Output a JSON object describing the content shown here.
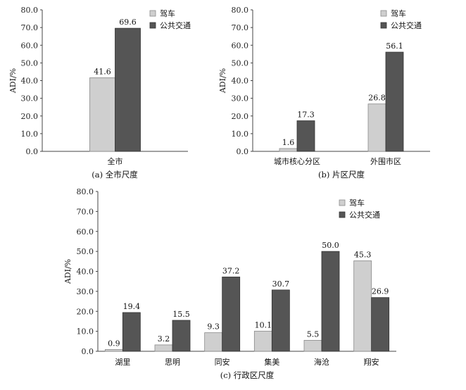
{
  "colors": {
    "drive": "#cfcfcf",
    "transit": "#555555",
    "drive_stroke": "#8a8a8a",
    "transit_stroke": "#333333"
  },
  "chart_data": [
    {
      "type": "bar",
      "caption": "(a) 全市尺度",
      "ylabel": "ADI/%",
      "ylim": [
        0,
        80
      ],
      "yticks": [
        "0.0",
        "10.0",
        "20.0",
        "30.0",
        "40.0",
        "50.0",
        "60.0",
        "70.0",
        "80.0"
      ],
      "categories": [
        "全市"
      ],
      "series": [
        {
          "name": "驾车",
          "values": [
            41.6
          ],
          "labels": [
            "41.6"
          ]
        },
        {
          "name": "公共交通",
          "values": [
            69.6
          ],
          "labels": [
            "69.6"
          ]
        }
      ],
      "legend_position": "top-right"
    },
    {
      "type": "bar",
      "caption": "(b) 片区尺度",
      "ylabel": "ADI/%",
      "ylim": [
        0,
        80
      ],
      "yticks": [
        "0.0",
        "10.0",
        "20.0",
        "30.0",
        "40.0",
        "50.0",
        "60.0",
        "70.0",
        "80.0"
      ],
      "categories": [
        "城市核心分区",
        "外围市区"
      ],
      "series": [
        {
          "name": "驾车",
          "values": [
            1.6,
            26.8
          ],
          "labels": [
            "1.6",
            "26.8"
          ]
        },
        {
          "name": "公共交通",
          "values": [
            17.3,
            56.1
          ],
          "labels": [
            "17.3",
            "56.1"
          ]
        }
      ],
      "legend_position": "top-right"
    },
    {
      "type": "bar",
      "caption": "(c) 行政区尺度",
      "ylabel": "ADI/%",
      "ylim": [
        0,
        80
      ],
      "yticks": [
        "0.0",
        "10.0",
        "20.0",
        "30.0",
        "40.0",
        "50.0",
        "60.0",
        "70.0",
        "80.0"
      ],
      "categories": [
        "湖里",
        "思明",
        "同安",
        "集美",
        "海沧",
        "翔安"
      ],
      "series": [
        {
          "name": "驾车",
          "values": [
            0.9,
            3.2,
            9.3,
            10.1,
            5.5,
            45.3
          ],
          "labels": [
            "0.9",
            "3.2",
            "9.3",
            "10.1",
            "5.5",
            "45.3"
          ]
        },
        {
          "name": "公共交通",
          "values": [
            19.4,
            15.5,
            37.2,
            30.7,
            50.0,
            26.9
          ],
          "labels": [
            "19.4",
            "15.5",
            "37.2",
            "30.7",
            "50.0",
            "26.9"
          ]
        }
      ],
      "legend_position": "top-right"
    }
  ]
}
